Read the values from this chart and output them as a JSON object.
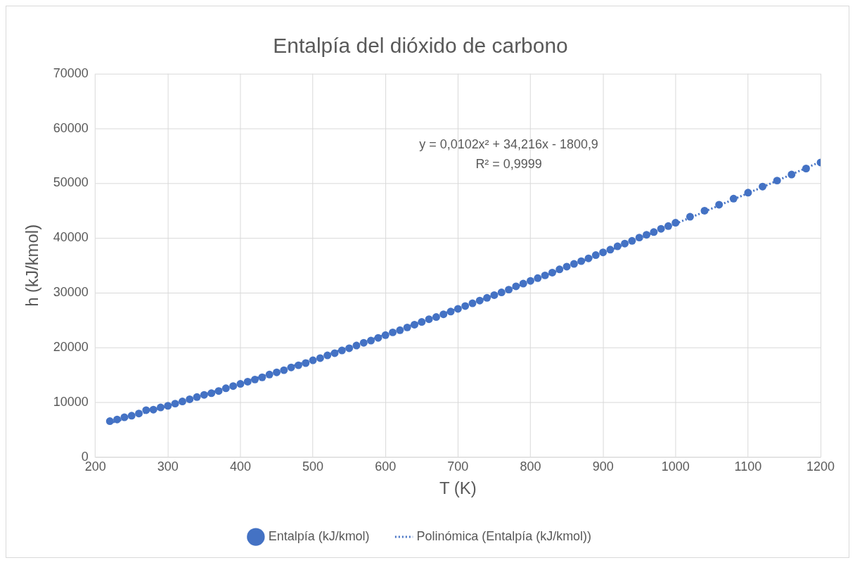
{
  "chart_data": {
    "type": "scatter",
    "title": "Entalpía del dióxido de carbono",
    "xlabel": "T (K)",
    "ylabel": "h (kJ/kmol)",
    "xlim": [
      200,
      1200
    ],
    "xticks": [
      200,
      300,
      400,
      500,
      600,
      700,
      800,
      900,
      1000,
      1100,
      1200
    ],
    "ylim": [
      0,
      70000
    ],
    "yticks": [
      0,
      10000,
      20000,
      30000,
      40000,
      50000,
      60000,
      70000
    ],
    "grid": true,
    "legend": "bottom",
    "marker": "circle",
    "annotations": [
      "y = 0,0102x² + 34,216x - 1800,9",
      "R² = 0,9999"
    ],
    "series": [
      {
        "name": "Entalpía (kJ/kmol)",
        "color": "#4472c4",
        "x": [
          220,
          230,
          240,
          250,
          260,
          270,
          280,
          290,
          300,
          310,
          320,
          330,
          340,
          350,
          360,
          370,
          380,
          390,
          400,
          410,
          420,
          430,
          440,
          450,
          460,
          470,
          480,
          490,
          500,
          510,
          520,
          530,
          540,
          550,
          560,
          570,
          580,
          590,
          600,
          610,
          620,
          630,
          640,
          650,
          660,
          670,
          680,
          690,
          700,
          710,
          720,
          730,
          740,
          750,
          760,
          770,
          780,
          790,
          800,
          810,
          820,
          830,
          840,
          850,
          860,
          870,
          880,
          890,
          900,
          910,
          920,
          930,
          940,
          950,
          960,
          970,
          980,
          990,
          1000,
          1020,
          1040,
          1060,
          1080,
          1100,
          1120,
          1140,
          1160,
          1180,
          1200
        ],
        "values": [
          6600,
          6900,
          7300,
          7600,
          8000,
          8600,
          8700,
          9100,
          9400,
          9800,
          10200,
          10600,
          11000,
          11400,
          11700,
          12100,
          12600,
          13000,
          13400,
          13800,
          14200,
          14600,
          15100,
          15500,
          15900,
          16400,
          16800,
          17200,
          17700,
          18100,
          18600,
          19000,
          19500,
          19900,
          20400,
          20900,
          21300,
          21800,
          22300,
          22800,
          23200,
          23700,
          24200,
          24700,
          25200,
          25600,
          26100,
          26600,
          27100,
          27600,
          28100,
          28600,
          29100,
          29600,
          30100,
          30600,
          31200,
          31700,
          32200,
          32700,
          33200,
          33700,
          34300,
          34800,
          35300,
          35800,
          36300,
          36900,
          37400,
          37900,
          38500,
          39000,
          39500,
          40100,
          40600,
          41100,
          41700,
          42200,
          42800,
          43900,
          45000,
          46100,
          47200,
          48300,
          49400,
          50500,
          51600,
          52700,
          53800
        ]
      },
      {
        "name": "Polinómica (Entalpía (kJ/kmol))",
        "type": "line",
        "color": "#4472c4",
        "line_style": "dotted",
        "marker": "none",
        "x": [
          220,
          320,
          420,
          520,
          620,
          720,
          820,
          920,
          1020,
          1120,
          1200
        ],
        "values": [
          6220,
          10190,
          14370,
          18750,
          23330,
          28120,
          33110,
          38310,
          43710,
          49320,
          53950
        ]
      }
    ]
  }
}
